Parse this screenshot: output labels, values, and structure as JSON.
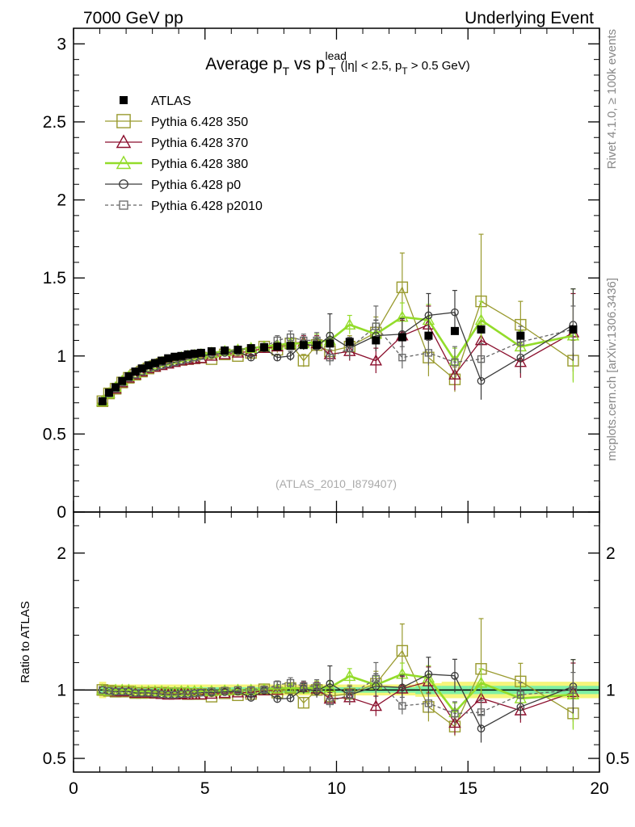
{
  "header": {
    "left": "7000 GeV pp",
    "right": "Underlying Event",
    "side_top": "Rivet 4.1.0, ≥ 100k events",
    "side_bottom": "mcplots.cern.ch [arXiv:1306.3436]"
  },
  "colors": {
    "atlas": "#000000",
    "p350": "#999a2e",
    "p370": "#8b0f2d",
    "p380": "#93dc2a",
    "p0": "#3b3b3b",
    "p2010": "#666666",
    "band_inner": "#7ef0a4",
    "band_outer": "#f5f57a"
  },
  "chart_data": [
    {
      "type": "scatter",
      "panel": "main",
      "title_parts": {
        "main": "Average p",
        "sub1": "T",
        "vs": " vs p",
        "sup": "lead",
        "sub2": "T",
        "cut_a": "(|η| < 2.5, p",
        "cut_sub": "T",
        "cut_b": " > 0.5 GeV)"
      },
      "watermark": "(ATLAS_2010_I879407)",
      "xlim": [
        0,
        20
      ],
      "ylim": [
        0,
        3.1
      ],
      "yticks": [
        "0",
        "0.5",
        "1",
        "1.5",
        "2",
        "2.5",
        "3"
      ],
      "ytick_values": [
        0,
        0.5,
        1,
        1.5,
        2,
        2.5,
        3
      ],
      "x": [
        1.1,
        1.35,
        1.6,
        1.85,
        2.1,
        2.35,
        2.6,
        2.85,
        3.1,
        3.35,
        3.6,
        3.85,
        4.1,
        4.35,
        4.6,
        4.85,
        5.25,
        5.75,
        6.25,
        6.75,
        7.25,
        7.75,
        8.25,
        8.75,
        9.25,
        9.75,
        10.5,
        11.5,
        12.5,
        13.5,
        14.5,
        15.5,
        17,
        19
      ],
      "series": [
        {
          "name": "ATLAS",
          "key": "atlas",
          "marker": "filled-square",
          "values": [
            0.71,
            0.765,
            0.8,
            0.84,
            0.87,
            0.9,
            0.92,
            0.94,
            0.955,
            0.97,
            0.985,
            0.995,
            1.0,
            1.01,
            1.015,
            1.02,
            1.03,
            1.035,
            1.04,
            1.05,
            1.055,
            1.06,
            1.065,
            1.07,
            1.07,
            1.08,
            1.09,
            1.1,
            1.12,
            1.13,
            1.16,
            1.17,
            1.13,
            1.17
          ]
        },
        {
          "name": "Pythia 6.428 350",
          "key": "p350",
          "marker": "open-square",
          "dash": "",
          "values": [
            0.71,
            0.76,
            0.79,
            0.83,
            0.86,
            0.88,
            0.9,
            0.92,
            0.935,
            0.95,
            0.96,
            0.97,
            0.975,
            0.98,
            0.985,
            0.99,
            0.98,
            1.01,
            1.0,
            1.02,
            1.06,
            1.04,
            1.08,
            0.97,
            1.07,
            1.03,
            1.06,
            1.15,
            1.44,
            0.99,
            0.85,
            1.35,
            1.2,
            0.97
          ],
          "errors": [
            0.01,
            0.01,
            0.01,
            0.01,
            0.01,
            0.01,
            0.01,
            0.01,
            0.01,
            0.01,
            0.01,
            0.01,
            0.01,
            0.01,
            0.01,
            0.01,
            0.01,
            0.01,
            0.01,
            0.02,
            0.02,
            0.02,
            0.03,
            0.04,
            0.05,
            0.06,
            0.07,
            0.1,
            0.22,
            0.12,
            0.08,
            0.43,
            0.15,
            0.13
          ]
        },
        {
          "name": "Pythia 6.428 370",
          "key": "p370",
          "marker": "open-triangle",
          "dash": "",
          "values": [
            0.71,
            0.76,
            0.79,
            0.83,
            0.86,
            0.88,
            0.9,
            0.92,
            0.93,
            0.94,
            0.95,
            0.96,
            0.97,
            0.975,
            0.98,
            0.985,
            1.0,
            1.01,
            1.02,
            1.03,
            1.05,
            1.06,
            1.08,
            1.09,
            1.08,
            1.01,
            1.03,
            0.97,
            1.13,
            1.2,
            0.88,
            1.1,
            0.96,
            1.15
          ],
          "errors": [
            0.01,
            0.01,
            0.01,
            0.01,
            0.01,
            0.01,
            0.01,
            0.01,
            0.01,
            0.01,
            0.01,
            0.01,
            0.01,
            0.01,
            0.01,
            0.01,
            0.01,
            0.01,
            0.01,
            0.02,
            0.02,
            0.02,
            0.03,
            0.04,
            0.05,
            0.05,
            0.06,
            0.08,
            0.1,
            0.12,
            0.1,
            0.12,
            0.1,
            0.25
          ]
        },
        {
          "name": "Pythia 6.428 380",
          "key": "p380",
          "marker": "open-triangle",
          "dash": "",
          "thick": true,
          "values": [
            0.71,
            0.76,
            0.8,
            0.84,
            0.87,
            0.89,
            0.91,
            0.93,
            0.945,
            0.96,
            0.97,
            0.98,
            0.99,
            1.0,
            1.005,
            1.01,
            1.02,
            1.03,
            1.04,
            1.05,
            1.06,
            1.07,
            1.08,
            1.08,
            1.09,
            1.1,
            1.2,
            1.14,
            1.25,
            1.23,
            0.97,
            1.23,
            1.06,
            1.13
          ],
          "errors": [
            0.01,
            0.01,
            0.01,
            0.01,
            0.01,
            0.01,
            0.01,
            0.01,
            0.01,
            0.01,
            0.01,
            0.01,
            0.01,
            0.01,
            0.01,
            0.01,
            0.01,
            0.01,
            0.01,
            0.02,
            0.02,
            0.02,
            0.03,
            0.04,
            0.05,
            0.05,
            0.06,
            0.07,
            0.09,
            0.1,
            0.08,
            0.12,
            0.1,
            0.3
          ]
        },
        {
          "name": "Pythia 6.428 p0",
          "key": "p0",
          "marker": "open-circle",
          "dash": "",
          "values": [
            0.71,
            0.76,
            0.79,
            0.83,
            0.86,
            0.88,
            0.9,
            0.92,
            0.93,
            0.94,
            0.95,
            0.96,
            0.97,
            0.98,
            0.99,
            1.0,
            1.01,
            1.02,
            1.03,
            0.99,
            1.05,
            0.99,
            1.0,
            1.08,
            1.06,
            1.13,
            1.05,
            1.13,
            1.14,
            1.26,
            1.28,
            0.84,
            0.99,
            1.2
          ],
          "errors": [
            0.01,
            0.01,
            0.01,
            0.01,
            0.01,
            0.01,
            0.01,
            0.01,
            0.01,
            0.01,
            0.01,
            0.01,
            0.01,
            0.01,
            0.01,
            0.01,
            0.01,
            0.01,
            0.01,
            0.02,
            0.02,
            0.02,
            0.03,
            0.04,
            0.05,
            0.14,
            0.07,
            0.1,
            0.1,
            0.14,
            0.14,
            0.12,
            0.1,
            0.23
          ]
        },
        {
          "name": "Pythia 6.428 p2010",
          "key": "p2010",
          "marker": "open-square-small",
          "dash": "4,3",
          "values": [
            0.71,
            0.76,
            0.79,
            0.83,
            0.86,
            0.88,
            0.9,
            0.92,
            0.93,
            0.94,
            0.95,
            0.96,
            0.97,
            0.98,
            0.99,
            1.0,
            1.02,
            1.03,
            1.04,
            1.05,
            1.06,
            1.1,
            1.12,
            1.1,
            1.1,
            0.99,
            1.05,
            1.19,
            0.99,
            1.02,
            0.96,
            0.98,
            1.09,
            1.17
          ],
          "errors": [
            0.01,
            0.01,
            0.01,
            0.01,
            0.01,
            0.01,
            0.01,
            0.01,
            0.01,
            0.01,
            0.01,
            0.01,
            0.01,
            0.01,
            0.01,
            0.01,
            0.01,
            0.01,
            0.01,
            0.02,
            0.02,
            0.03,
            0.04,
            0.04,
            0.05,
            0.05,
            0.07,
            0.13,
            0.07,
            0.08,
            0.1,
            0.1,
            0.1,
            0.15
          ]
        }
      ]
    },
    {
      "type": "scatter",
      "panel": "ratio",
      "ylabel": "Ratio to ATLAS",
      "xlim": [
        0,
        20
      ],
      "ylim": [
        0.4,
        2.3
      ],
      "yticks": [
        "0.5",
        "1",
        "2"
      ],
      "ytick_values": [
        0.5,
        1,
        2
      ],
      "xticks": [
        "0",
        "5",
        "10",
        "15",
        "20"
      ],
      "xtick_values": [
        0,
        5,
        10,
        15,
        20
      ],
      "reference_line": 1,
      "band_inner_halfwidth": [
        0.02,
        0.02,
        0.02,
        0.02,
        0.02,
        0.02,
        0.02,
        0.02,
        0.02,
        0.02,
        0.02,
        0.02,
        0.02,
        0.02,
        0.02,
        0.02,
        0.02,
        0.02,
        0.02,
        0.02,
        0.02,
        0.02,
        0.02,
        0.02,
        0.02,
        0.02,
        0.02,
        0.02,
        0.02,
        0.03,
        0.03,
        0.03,
        0.03,
        0.03
      ],
      "band_outer_halfwidth": [
        0.06,
        0.04,
        0.04,
        0.04,
        0.04,
        0.04,
        0.04,
        0.04,
        0.04,
        0.04,
        0.04,
        0.04,
        0.04,
        0.04,
        0.04,
        0.04,
        0.04,
        0.04,
        0.04,
        0.04,
        0.04,
        0.04,
        0.04,
        0.04,
        0.04,
        0.04,
        0.04,
        0.04,
        0.04,
        0.05,
        0.06,
        0.06,
        0.06,
        0.06
      ]
    }
  ]
}
